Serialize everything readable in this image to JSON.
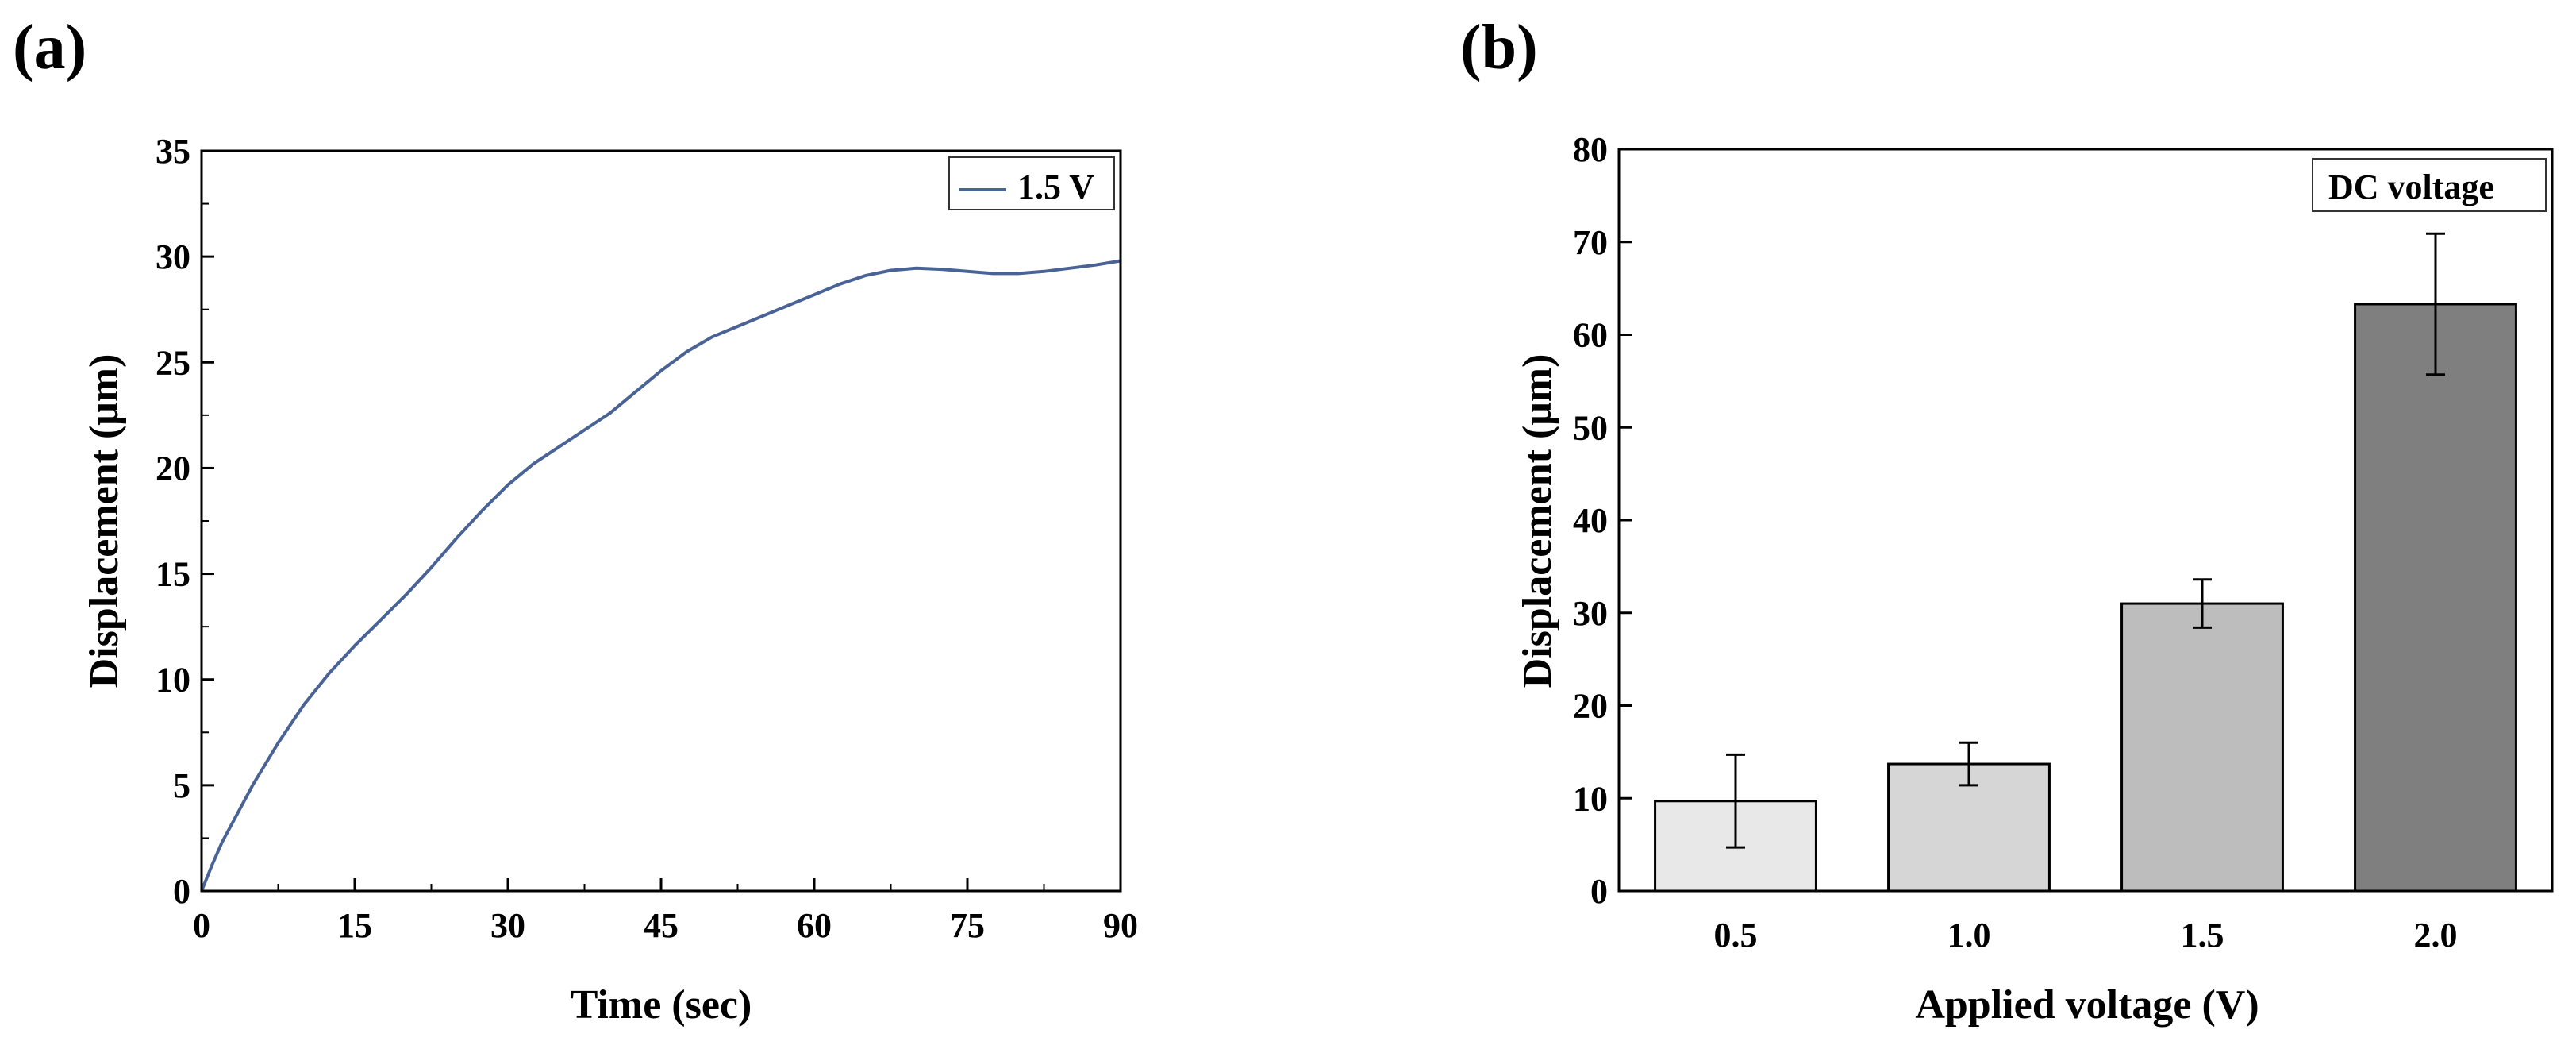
{
  "panel_a_label": "(a)",
  "panel_b_label": "(b)",
  "chart_data": [
    {
      "type": "line",
      "xlabel": "Time (sec)",
      "ylabel": "Displacement (μm)",
      "xlim": [
        0,
        90
      ],
      "ylim": [
        0,
        35
      ],
      "xticks": [
        0,
        15,
        30,
        45,
        60,
        75,
        90
      ],
      "xtick_labels": [
        "0",
        "15",
        "30",
        "45",
        "60",
        "75",
        "90"
      ],
      "yticks": [
        0,
        5,
        10,
        15,
        20,
        25,
        30,
        35
      ],
      "ytick_labels": [
        "0",
        "5",
        "10",
        "15",
        "20",
        "25",
        "30",
        "35"
      ],
      "legend": [
        "1.5 V"
      ],
      "legend_position": "top-right",
      "color": "#4a6396",
      "series": [
        {
          "name": "1.5 V",
          "x": [
            0,
            1,
            2,
            3,
            5,
            7.5,
            10,
            12.5,
            15,
            17.5,
            20,
            22.5,
            25,
            27.5,
            30,
            32.5,
            35,
            37.5,
            40,
            42.5,
            45,
            47.5,
            50,
            52.5,
            55,
            57.5,
            60,
            62.5,
            65,
            67.5,
            70,
            72.5,
            75,
            77.5,
            80,
            82.5,
            85,
            87.5,
            90
          ],
          "y": [
            0,
            1.2,
            2.3,
            3.2,
            5.0,
            7.0,
            8.8,
            10.3,
            11.6,
            12.8,
            14.0,
            15.3,
            16.7,
            18.0,
            19.2,
            20.2,
            21.0,
            21.8,
            22.6,
            23.6,
            24.6,
            25.5,
            26.2,
            26.7,
            27.2,
            27.7,
            28.2,
            28.7,
            29.1,
            29.35,
            29.45,
            29.4,
            29.3,
            29.2,
            29.2,
            29.3,
            29.45,
            29.6,
            29.8
          ]
        }
      ]
    },
    {
      "type": "bar",
      "xlabel": "Applied voltage (V)",
      "ylabel": "Displacement (μm)",
      "ylim": [
        0,
        80
      ],
      "yticks": [
        0,
        10,
        20,
        30,
        40,
        50,
        60,
        70,
        80
      ],
      "ytick_labels": [
        "0",
        "10",
        "20",
        "30",
        "40",
        "50",
        "60",
        "70",
        "80"
      ],
      "categories": [
        "0.5",
        "1.0",
        "1.5",
        "2.0"
      ],
      "values": [
        9.7,
        13.7,
        31.0,
        63.3
      ],
      "errors": [
        5.0,
        2.3,
        2.6,
        7.6
      ],
      "bar_colors": [
        "#e8e8e8",
        "#d6d6d6",
        "#bdbdbd",
        "#7f7f7f"
      ],
      "legend": [
        "DC voltage"
      ],
      "legend_position": "top-right"
    }
  ]
}
